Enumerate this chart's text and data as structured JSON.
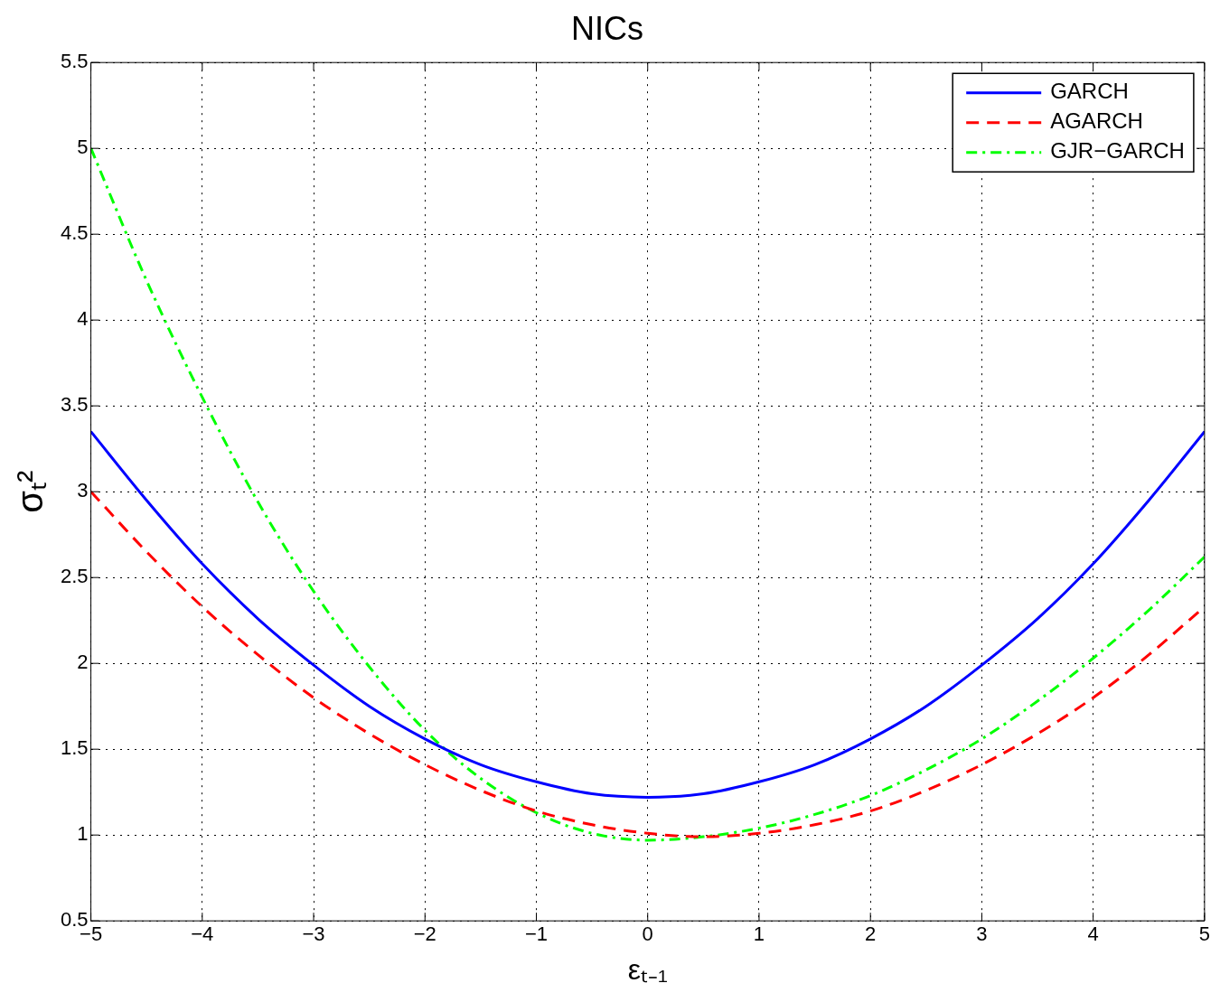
{
  "chart_data": {
    "type": "line",
    "title": "NICs",
    "xlabel": "εₜ₋₁",
    "ylabel": "σₜ²",
    "x": [
      -5,
      -4.5,
      -4,
      -3.5,
      -3,
      -2.5,
      -2,
      -1.5,
      -1,
      -0.5,
      0,
      0.5,
      1,
      1.5,
      2,
      2.5,
      3,
      3.5,
      4,
      4.5,
      5
    ],
    "series": [
      {
        "name": "GARCH",
        "color": "#0000ff",
        "line_style": "solid",
        "values": [
          3.35,
          2.95,
          2.58,
          2.26,
          1.99,
          1.75,
          1.56,
          1.41,
          1.31,
          1.24,
          1.22,
          1.24,
          1.31,
          1.41,
          1.56,
          1.75,
          1.99,
          2.26,
          2.58,
          2.95,
          3.35
        ]
      },
      {
        "name": "AGARCH",
        "color": "#ff0000",
        "line_style": "dashed",
        "values": [
          3.0,
          2.65,
          2.33,
          2.05,
          1.8,
          1.59,
          1.41,
          1.26,
          1.14,
          1.06,
          1.01,
          0.99,
          1.01,
          1.06,
          1.14,
          1.26,
          1.41,
          1.59,
          1.8,
          2.05,
          2.33
        ]
      },
      {
        "name": "GJR−GARCH",
        "color": "#00ff00",
        "line_style": "dashdot",
        "values": [
          5.0,
          4.23,
          3.55,
          2.94,
          2.42,
          1.98,
          1.61,
          1.33,
          1.13,
          1.01,
          0.97,
          0.99,
          1.04,
          1.12,
          1.23,
          1.38,
          1.56,
          1.78,
          2.03,
          2.31,
          2.62
        ]
      }
    ],
    "xlim": [
      -5,
      5
    ],
    "xticks": [
      {
        "value": -5,
        "label": "−5"
      },
      {
        "value": -4,
        "label": "−4"
      },
      {
        "value": -3,
        "label": "−3"
      },
      {
        "value": -2,
        "label": "−2"
      },
      {
        "value": -1,
        "label": "−1"
      },
      0,
      1,
      2,
      3,
      4,
      5
    ],
    "ylim": [
      0.5,
      5.5
    ],
    "yticks": [
      0.5,
      1,
      1.5,
      2,
      2.5,
      3,
      3.5,
      4,
      4.5,
      5,
      5.5
    ],
    "grid": true,
    "legend": "top right"
  }
}
